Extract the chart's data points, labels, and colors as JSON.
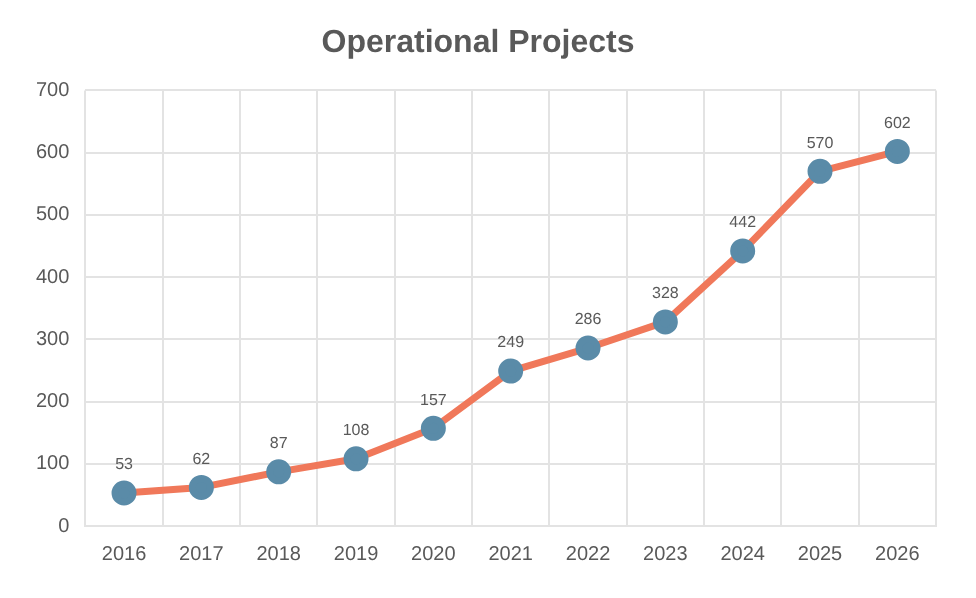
{
  "chart_data": {
    "type": "line",
    "title": "Operational Projects",
    "categories": [
      "2016",
      "2017",
      "2018",
      "2019",
      "2020",
      "2021",
      "2022",
      "2023",
      "2024",
      "2025",
      "2026"
    ],
    "series": [
      {
        "color": "#f0785a",
        "colors": [
          "#5a8ba8",
          "#5a8ba8",
          "#5a8ba8",
          "#5a8ba8",
          "#5a8ba8",
          "#5a8ba8",
          "#5a8ba8",
          "#5a8ba8",
          "#5a8ba8",
          "#5a8ba8",
          "#5a8ba8"
        ],
        "values": [
          53,
          62,
          87,
          108,
          157,
          249,
          286,
          328,
          442,
          570,
          602
        ]
      }
    ],
    "ylim": [
      0,
      700
    ],
    "yticks": [
      0,
      100,
      200,
      300,
      400,
      500,
      600,
      700
    ],
    "grid": true,
    "legend": false,
    "marker": "circle",
    "line_style": "solid",
    "data_labels": true
  }
}
